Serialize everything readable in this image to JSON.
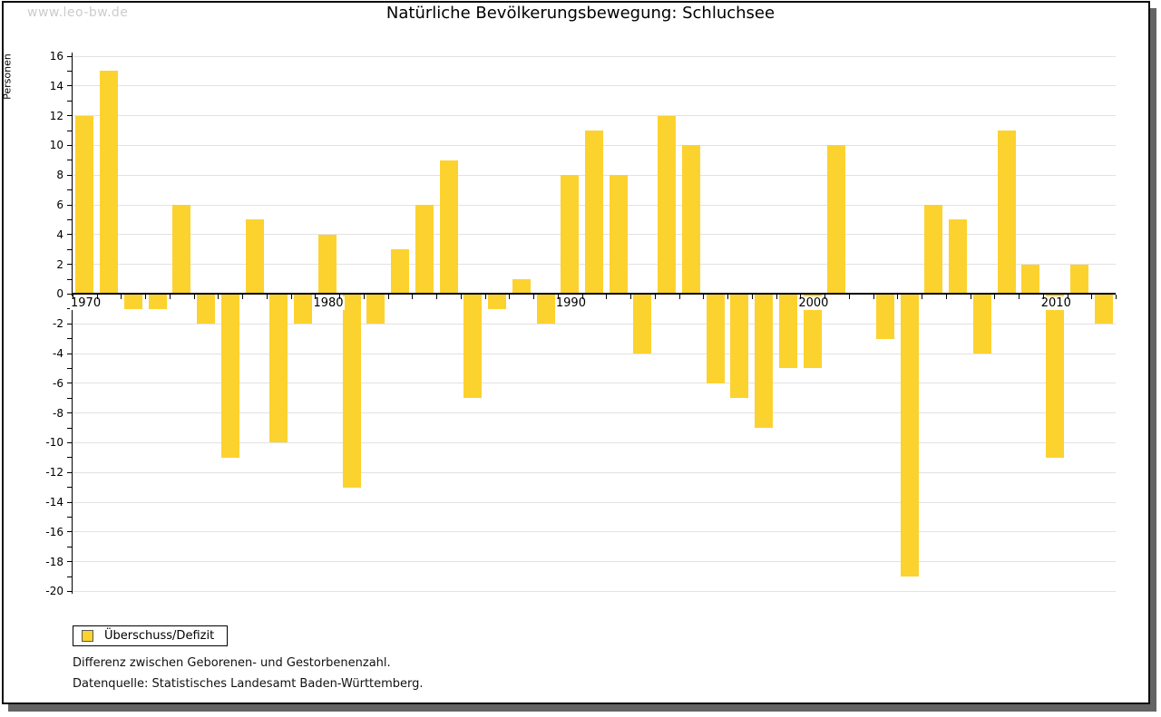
{
  "watermark": "www.leo-bw.de",
  "title": "Natürliche Bevölkerungsbewegung: Schluchsee",
  "y_axis_label": "Personen",
  "legend": {
    "label": "Überschuss/Defizit"
  },
  "footnotes": [
    "Differenz zwischen Geborenen- und Gestorbenenzahl.",
    "Datenquelle: Statistisches Landesamt Baden-Württemberg."
  ],
  "colors": {
    "bar": "#FCD22F",
    "grid": "#E2E2E2",
    "axis": "#000000",
    "watermark": "#CCCCCC",
    "frame_shadow": "#646464"
  },
  "chart_data": {
    "type": "bar",
    "title": "Natürliche Bevölkerungsbewegung: Schluchsee",
    "xlabel": "",
    "ylabel": "Personen",
    "ylim": [
      -20,
      16
    ],
    "ytick_step": 2,
    "ytick_minor_step": 1,
    "grid": true,
    "legend_position": "bottom-left",
    "legend_entries": [
      "Überschuss/Defizit"
    ],
    "xtick_labels": [
      1970,
      1980,
      1990,
      2000,
      2010
    ],
    "x": [
      1970,
      1971,
      1972,
      1973,
      1974,
      1975,
      1976,
      1977,
      1978,
      1979,
      1980,
      1981,
      1982,
      1983,
      1984,
      1985,
      1986,
      1987,
      1988,
      1989,
      1990,
      1991,
      1992,
      1993,
      1994,
      1995,
      1996,
      1997,
      1998,
      1999,
      2000,
      2001,
      2002,
      2003,
      2004,
      2005,
      2006,
      2007,
      2008,
      2009,
      2010,
      2011,
      2012
    ],
    "values": [
      12,
      15,
      -1,
      -1,
      6,
      -2,
      -11,
      5,
      -10,
      -2,
      4,
      -13,
      -2,
      3,
      6,
      9,
      -7,
      -1,
      1,
      -2,
      8,
      11,
      8,
      -4,
      12,
      10,
      -6,
      -7,
      -9,
      -5,
      -5,
      10,
      0,
      -3,
      -19,
      6,
      5,
      -4,
      11,
      2,
      -11,
      2,
      -2
    ]
  }
}
